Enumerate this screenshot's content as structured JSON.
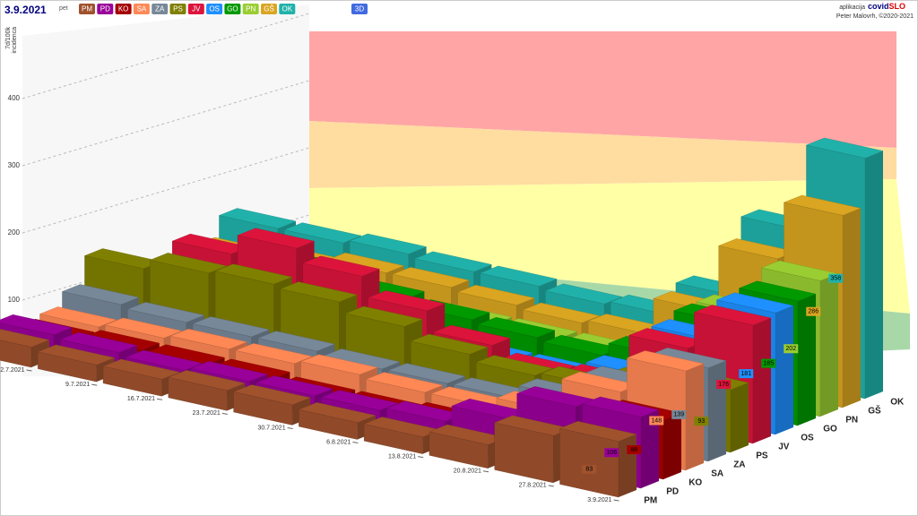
{
  "header": {
    "date": "3.9.2021",
    "weekday": "pet",
    "view_button": "3D",
    "app_prefix": "aplikacija",
    "app_name_a": "covid",
    "app_name_b": "SLO",
    "credit": "Peter Malovrh, ©2020-2021"
  },
  "chart_data": {
    "type": "bar3d",
    "y_label": "7d/100k",
    "y_label_sub": "incidenca",
    "categories": [
      "2.7.2021",
      "9.7.2021",
      "16.7.2021",
      "23.7.2021",
      "30.7.2021",
      "6.8.2021",
      "13.8.2021",
      "20.8.2021",
      "27.8.2021",
      "3.9.2021"
    ],
    "ylim": [
      0,
      500
    ],
    "yticks": [
      100,
      200,
      300,
      400
    ],
    "grid": true,
    "series": [
      {
        "name": "PM",
        "color": "#a0522d",
        "values": [
          30,
          25,
          25,
          30,
          30,
          25,
          25,
          35,
          70,
          83
        ]
      },
      {
        "name": "PD",
        "color": "#990099",
        "values": [
          35,
          30,
          25,
          30,
          30,
          30,
          35,
          60,
          100,
          106
        ]
      },
      {
        "name": "KO",
        "color": "#a50000",
        "values": [
          15,
          20,
          20,
          20,
          15,
          15,
          20,
          30,
          60,
          88
        ]
      },
      {
        "name": "SA",
        "color": "#ff8855",
        "values": [
          20,
          25,
          30,
          30,
          35,
          30,
          30,
          45,
          95,
          148
        ]
      },
      {
        "name": "ZA",
        "color": "#778899",
        "values": [
          40,
          35,
          35,
          35,
          30,
          30,
          30,
          50,
          90,
          139
        ]
      },
      {
        "name": "PS",
        "color": "#808000",
        "values": [
          80,
          95,
          100,
          95,
          80,
          60,
          50,
          55,
          75,
          93
        ]
      },
      {
        "name": "JV",
        "color": "#dc143c",
        "values": [
          50,
          110,
          140,
          120,
          90,
          60,
          40,
          45,
          120,
          176
        ]
      },
      {
        "name": "OS",
        "color": "#1e90ff",
        "values": [
          20,
          15,
          30,
          30,
          30,
          25,
          25,
          45,
          120,
          181
        ]
      },
      {
        "name": "GO",
        "color": "#009900",
        "values": [
          20,
          60,
          75,
          60,
          50,
          45,
          40,
          60,
          130,
          185
        ]
      },
      {
        "name": "PN",
        "color": "#9acd32",
        "values": [
          10,
          15,
          20,
          25,
          30,
          30,
          30,
          50,
          130,
          202
        ]
      },
      {
        "name": "GŠ",
        "color": "#daa520",
        "values": [
          30,
          40,
          50,
          50,
          45,
          40,
          45,
          100,
          200,
          286
        ]
      },
      {
        "name": "OK",
        "color": "#20b2aa",
        "values": [
          60,
          60,
          65,
          60,
          60,
          55,
          60,
          110,
          230,
          358
        ]
      }
    ]
  }
}
